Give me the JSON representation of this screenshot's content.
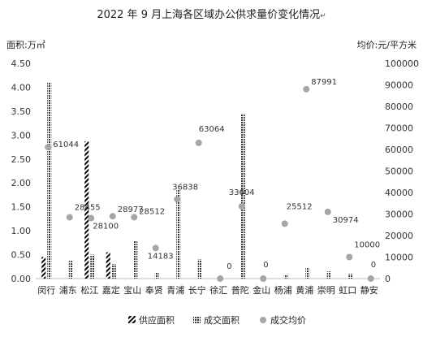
{
  "chart_data": {
    "type": "bar",
    "title": "2022 年 9 月上海各区域办公供求量价变化情况",
    "title_mark": "↵",
    "ylabel_left": "面积:万㎡",
    "ylabel_right": "均价:元/平方米",
    "ylim_left": [
      0,
      4.5
    ],
    "ylim_right": [
      0,
      100000
    ],
    "yticks_left": [
      "0.00",
      "0.50",
      "1.00",
      "1.50",
      "2.00",
      "2.50",
      "3.00",
      "3.50",
      "4.00",
      "4.50"
    ],
    "yticks_right": [
      "0",
      "10000",
      "20000",
      "30000",
      "40000",
      "50000",
      "60000",
      "70000",
      "80000",
      "90000",
      "100000"
    ],
    "categories": [
      "闵行",
      "浦东",
      "松江",
      "嘉定",
      "宝山",
      "奉贤",
      "青浦",
      "长宁",
      "徐汇",
      "普陀",
      "金山",
      "杨浦",
      "黄浦",
      "崇明",
      "虹口",
      "静安"
    ],
    "series": [
      {
        "name": "供应面积",
        "kind": "bar",
        "pattern": "diagonal-stripes",
        "color": "#000000",
        "values": [
          0.45,
          0,
          2.87,
          0.55,
          0,
          0,
          0,
          0,
          0,
          0,
          0,
          0,
          0,
          0,
          0,
          0
        ]
      },
      {
        "name": "成交面积",
        "kind": "bar",
        "pattern": "crosshatch",
        "color": "#333333",
        "values": [
          4.1,
          0.37,
          0.5,
          0.3,
          0.78,
          0.12,
          1.87,
          0.4,
          0,
          3.45,
          0,
          0.08,
          0.22,
          0.15,
          0.1,
          0
        ]
      },
      {
        "name": "成交均价",
        "kind": "scatter",
        "color": "#a6a6a6",
        "values": [
          61044,
          28455,
          28100,
          28977,
          28512,
          14183,
          36838,
          63064,
          0,
          33604,
          0,
          25512,
          87991,
          30974,
          10000,
          0
        ],
        "labels": [
          "61044",
          "28455",
          "28100",
          "28977",
          "28512",
          "14183",
          "36838",
          "63064",
          "0",
          "33604",
          "0",
          "25512",
          "87991",
          "30974",
          "10000",
          "0"
        ]
      }
    ],
    "legend": [
      "供应面积",
      "成交面积",
      "成交均价"
    ],
    "legend_position": "bottom",
    "grid": false
  }
}
